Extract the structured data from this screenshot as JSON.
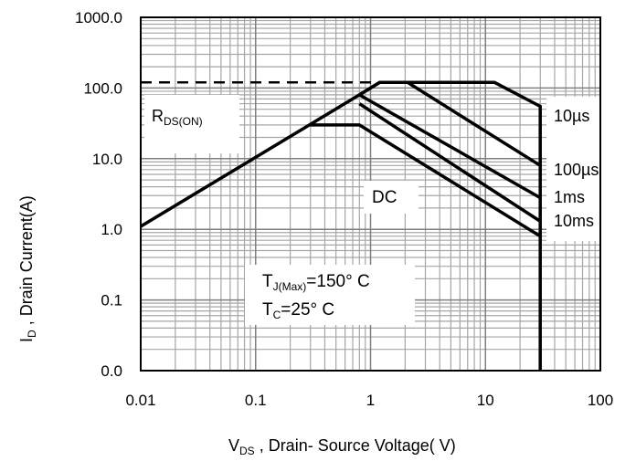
{
  "chart_data": {
    "type": "line",
    "xlabel": {
      "main": "V",
      "sub": "DS",
      "rest": " ,  Drain- Source  Voltage( V)"
    },
    "ylabel": {
      "main": "I",
      "sub": "D",
      "rest": " ,  Drain  Current(A)"
    },
    "x_scale": "log",
    "y_scale": "log",
    "xlim": [
      0.01,
      100
    ],
    "ylim": [
      0.1,
      1000
    ],
    "x_ticks": [
      {
        "value": 0.01,
        "label": "0.01"
      },
      {
        "value": 0.1,
        "label": "0.1"
      },
      {
        "value": 1,
        "label": "1"
      },
      {
        "value": 10,
        "label": "10"
      },
      {
        "value": 100,
        "label": "100"
      }
    ],
    "y_ticks": [
      {
        "value": 1000,
        "label": "1000.0"
      },
      {
        "value": 100,
        "label": "100.0"
      },
      {
        "value": 10,
        "label": "10.0"
      },
      {
        "value": 1,
        "label": "1.0"
      },
      {
        "value": 0.1,
        "label": "0.1"
      },
      {
        "value": 0.01,
        "label": "0.0"
      }
    ],
    "grid": true,
    "series": [
      {
        "name": "10µs",
        "points": [
          [
            0.01,
            1.1
          ],
          [
            0.8,
            80
          ],
          [
            1.2,
            120
          ],
          [
            12,
            120
          ],
          [
            30,
            55
          ],
          [
            30,
            0.01
          ]
        ]
      },
      {
        "name": "100µs",
        "points": [
          [
            0.8,
            80
          ],
          [
            1.2,
            120
          ],
          [
            2.1,
            120
          ],
          [
            30,
            8
          ]
        ]
      },
      {
        "name": "1ms",
        "points": [
          [
            0.8,
            80
          ],
          [
            30,
            2.8
          ]
        ]
      },
      {
        "name": "10ms",
        "points": [
          [
            0.8,
            60
          ],
          [
            30,
            1.3
          ]
        ]
      },
      {
        "name": "DC",
        "points": [
          [
            0.3,
            30
          ],
          [
            0.8,
            30
          ],
          [
            30,
            0.8
          ]
        ]
      }
    ],
    "rds_limit_line": {
      "points": [
        [
          0.01,
          120
        ],
        [
          1.2,
          120
        ]
      ],
      "style": "dashed"
    },
    "annotations": [
      {
        "id": "rds",
        "main": "R",
        "sub": "DS(ON)"
      },
      {
        "id": "dc",
        "text": "DC"
      },
      {
        "id": "tj",
        "main": "T",
        "sub": "J(Max)",
        "rest": "=150°  C"
      },
      {
        "id": "tc",
        "main": "T",
        "sub": "C",
        "rest": "=25°  C"
      },
      {
        "id": "l10us",
        "text": "10µs"
      },
      {
        "id": "l100us",
        "text": "100µs"
      },
      {
        "id": "l1ms",
        "text": "1ms"
      },
      {
        "id": "l10ms",
        "text": "10ms"
      }
    ]
  }
}
